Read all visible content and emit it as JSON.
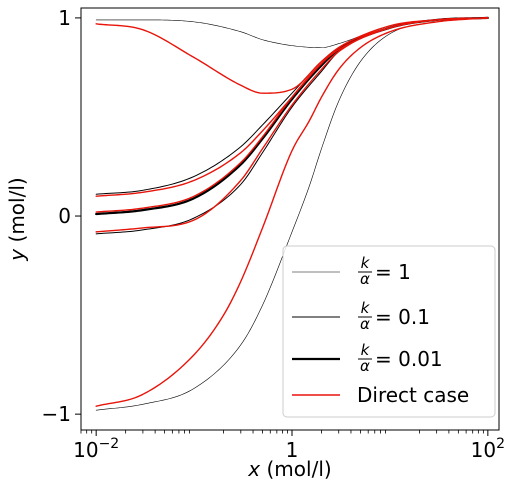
{
  "chart_data": {
    "type": "line",
    "xscale": "log",
    "xlim": [
      0.007,
      130
    ],
    "ylim": [
      -1.08,
      1.05
    ],
    "x_ticks": [
      {
        "value": 0.01,
        "base": "10",
        "exp": "−2"
      },
      {
        "value": 1,
        "label": "1"
      },
      {
        "value": 100,
        "base": "10",
        "exp": "2"
      }
    ],
    "y_ticks": [
      {
        "value": -1,
        "label": "−1"
      },
      {
        "value": 0,
        "label": "0"
      },
      {
        "value": 1,
        "label": "1"
      }
    ],
    "xlabel": {
      "var": "x",
      "unit": " (mol/l)"
    },
    "ylabel": {
      "var": "y",
      "unit": " (mol/l)"
    },
    "grid": false,
    "legend_position": "lower-right",
    "legend": [
      {
        "name": "k/α = 1",
        "num": "k",
        "den": "α",
        "value": "= 1",
        "color": "#000000",
        "width": 0.6
      },
      {
        "name": "k/α = 0.1",
        "num": "k",
        "den": "α",
        "value": "= 0.1",
        "color": "#000000",
        "width": 1.0
      },
      {
        "name": "k/α = 0.01",
        "num": "k",
        "den": "α",
        "value": "= 0.01",
        "color": "#000000",
        "width": 2.2
      },
      {
        "name": "Direct case",
        "label": "Direct case",
        "color": "#e8140a",
        "width": 1.4
      }
    ],
    "series": [
      {
        "group": "k/α = 1",
        "color": "#000000",
        "width": 0.6,
        "x": [
          0.01,
          0.03,
          0.1,
          0.3,
          0.5,
          1,
          2,
          3,
          10,
          30,
          100
        ],
        "y": [
          0.99,
          0.99,
          0.98,
          0.93,
          0.89,
          0.86,
          0.85,
          0.87,
          0.96,
          0.99,
          1.0
        ]
      },
      {
        "group": "k/α = 1",
        "color": "#000000",
        "width": 0.6,
        "x": [
          0.01,
          0.03,
          0.1,
          0.3,
          0.5,
          1,
          1.5,
          2,
          3,
          5,
          10,
          30,
          100
        ],
        "y": [
          -0.98,
          -0.95,
          -0.87,
          -0.65,
          -0.45,
          -0.08,
          0.15,
          0.34,
          0.58,
          0.78,
          0.92,
          0.98,
          1.0
        ]
      },
      {
        "group": "k/α = 0.1",
        "color": "#000000",
        "width": 1.0,
        "x": [
          0.01,
          0.03,
          0.1,
          0.3,
          0.5,
          1,
          2,
          3,
          10,
          30,
          100
        ],
        "y": [
          0.11,
          0.13,
          0.2,
          0.35,
          0.46,
          0.62,
          0.78,
          0.85,
          0.95,
          0.99,
          1.0
        ]
      },
      {
        "group": "k/α = 0.1",
        "color": "#000000",
        "width": 1.0,
        "x": [
          0.01,
          0.03,
          0.1,
          0.3,
          0.5,
          1,
          2,
          3,
          10,
          30,
          100
        ],
        "y": [
          -0.09,
          -0.07,
          -0.01,
          0.16,
          0.32,
          0.55,
          0.73,
          0.83,
          0.95,
          0.99,
          1.0
        ]
      },
      {
        "group": "k/α = 0.01",
        "color": "#000000",
        "width": 2.2,
        "x": [
          0.01,
          0.03,
          0.1,
          0.3,
          0.5,
          1,
          2,
          3,
          10,
          30,
          100
        ],
        "y": [
          0.01,
          0.03,
          0.09,
          0.26,
          0.39,
          0.59,
          0.76,
          0.84,
          0.95,
          0.99,
          1.0
        ]
      },
      {
        "group": "Direct case",
        "color": "#e8140a",
        "width": 1.4,
        "x": [
          0.01,
          0.03,
          0.1,
          0.3,
          0.5,
          1,
          2,
          3,
          10,
          30,
          100
        ],
        "y": [
          0.97,
          0.94,
          0.8,
          0.66,
          0.62,
          0.64,
          0.78,
          0.85,
          0.96,
          0.99,
          1.0
        ]
      },
      {
        "group": "Direct case",
        "color": "#e8140a",
        "width": 1.4,
        "x": [
          0.01,
          0.03,
          0.1,
          0.2,
          0.3,
          0.5,
          1,
          1.5,
          2,
          3,
          5,
          10,
          30,
          100
        ],
        "y": [
          -0.96,
          -0.9,
          -0.7,
          -0.5,
          -0.33,
          -0.06,
          0.33,
          0.48,
          0.6,
          0.74,
          0.85,
          0.93,
          0.98,
          1.0
        ]
      },
      {
        "group": "Direct case",
        "color": "#e8140a",
        "width": 1.4,
        "x": [
          0.01,
          0.03,
          0.1,
          0.3,
          0.5,
          1,
          2,
          3,
          10,
          30,
          100
        ],
        "y": [
          0.1,
          0.12,
          0.18,
          0.32,
          0.43,
          0.6,
          0.77,
          0.85,
          0.95,
          0.99,
          1.0
        ]
      },
      {
        "group": "Direct case",
        "color": "#e8140a",
        "width": 1.4,
        "x": [
          0.01,
          0.03,
          0.1,
          0.3,
          0.5,
          1,
          2,
          3,
          10,
          30,
          100
        ],
        "y": [
          -0.08,
          -0.06,
          -0.02,
          0.18,
          0.34,
          0.56,
          0.74,
          0.83,
          0.95,
          0.99,
          1.0
        ]
      },
      {
        "group": "Direct case",
        "color": "#e8140a",
        "width": 1.4,
        "x": [
          0.01,
          0.03,
          0.1,
          0.3,
          0.5,
          1,
          2,
          3,
          10,
          30,
          100
        ],
        "y": [
          0.02,
          0.04,
          0.1,
          0.27,
          0.4,
          0.6,
          0.77,
          0.84,
          0.95,
          0.99,
          1.0
        ]
      }
    ]
  }
}
